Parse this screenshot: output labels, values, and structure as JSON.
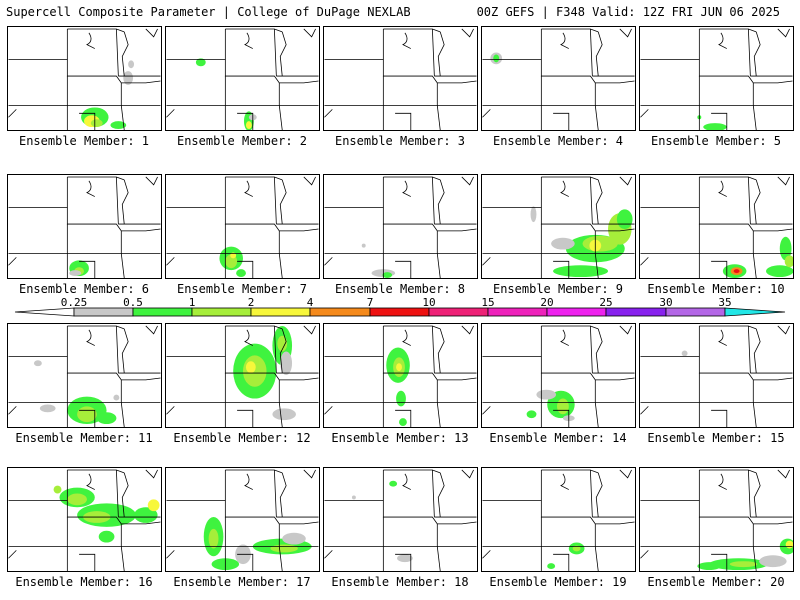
{
  "header": {
    "left": "Supercell Composite Parameter | College of DuPage NEXLAB",
    "right": "00Z GEFS | F348 Valid: 12Z FRI JUN 06 2025"
  },
  "member_label_prefix": "Ensemble Member: ",
  "members": [
    1,
    2,
    3,
    4,
    5,
    6,
    7,
    8,
    9,
    10,
    11,
    12,
    13,
    14,
    15,
    16,
    17,
    18,
    19,
    20
  ],
  "legend": {
    "ticks": [
      "0.25",
      "0.5",
      "1",
      "2",
      "4",
      "7",
      "10",
      "15",
      "20",
      "25",
      "30",
      "35"
    ],
    "colors": [
      "#c8c8c8",
      "#3ff33f",
      "#a6ee3a",
      "#f7f73b",
      "#f58a1c",
      "#ee1111",
      "#ee2277",
      "#ee22bb",
      "#ee22ee",
      "#8822ee",
      "#b366e6",
      "#22e6e6"
    ]
  }
}
